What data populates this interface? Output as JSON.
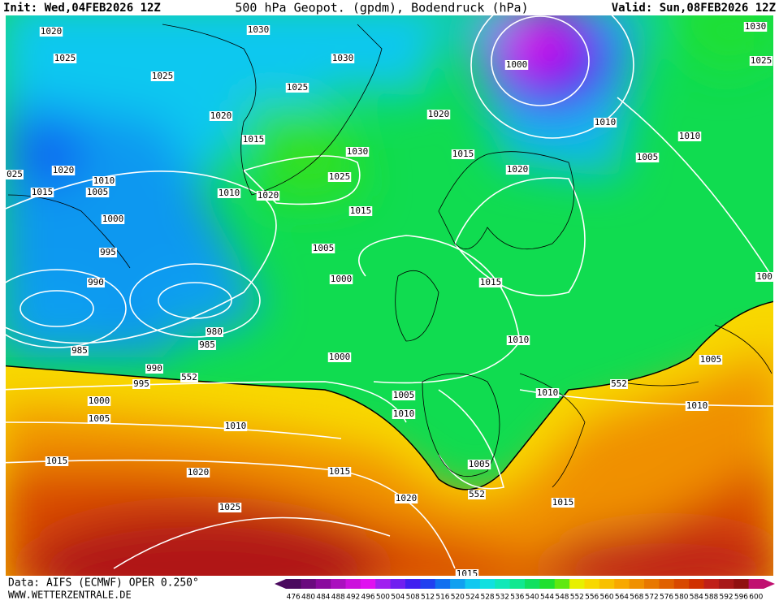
{
  "header": {
    "init": "Init: Wed,04FEB2026 12Z",
    "title": "500 hPa Geopot. (gpdm), Bodendruck (hPa)",
    "valid": "Valid: Sun,08FEB2026 12Z"
  },
  "footer": {
    "data": "Data: AIFS (ECMWF) OPER 0.250°",
    "site": "WWW.WETTERZENTRALE.DE"
  },
  "map": {
    "isobar_labels": [
      "1020",
      "1025",
      "1025",
      "1030",
      "1030",
      "1000",
      "1025",
      "1020",
      "1020",
      "1010",
      "1010",
      "1030",
      "1025",
      "1015",
      "1030",
      "1015",
      "1005",
      "1020",
      "025",
      "1010",
      "1015",
      "1005",
      "1025",
      "1010",
      "1020",
      "1020",
      "1015",
      "1000",
      "995",
      "1005",
      "990",
      "1000",
      "1015",
      "100",
      "980",
      "985",
      "985",
      "1010",
      "1000",
      "1005",
      "990",
      "995",
      "552",
      "552",
      "1010",
      "1005",
      "1000",
      "1010",
      "1005",
      "1010",
      "1010",
      "1015",
      "1005",
      "1020",
      "1015",
      "552",
      "1020",
      "1015",
      "1025",
      "1015"
    ]
  },
  "colorbar": {
    "labels": [
      "476",
      "480",
      "484",
      "488",
      "492",
      "496",
      "500",
      "504",
      "508",
      "512",
      "516",
      "520",
      "524",
      "528",
      "532",
      "536",
      "540",
      "544",
      "548",
      "552",
      "556",
      "560",
      "564",
      "568",
      "572",
      "576",
      "580",
      "584",
      "588",
      "592",
      "596",
      "600"
    ],
    "colors": [
      "#4a0a5e",
      "#6a0a7e",
      "#8a0a9e",
      "#aa10be",
      "#cc10dc",
      "#e010f0",
      "#a020f0",
      "#7020f0",
      "#4020f0",
      "#2040f0",
      "#1070f0",
      "#10a0f0",
      "#10c8f0",
      "#10e0e0",
      "#10e8b8",
      "#10e890",
      "#10e060",
      "#20e030",
      "#60e810",
      "#e8f000",
      "#f8d800",
      "#f8c000",
      "#f8a800",
      "#f09000",
      "#e87800",
      "#e06000",
      "#d84800",
      "#d03000",
      "#c02018",
      "#a81818",
      "#901010",
      "#c01070"
    ]
  }
}
